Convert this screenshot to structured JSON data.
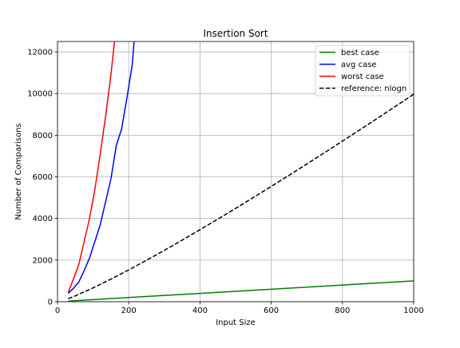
{
  "chart_data": {
    "type": "line",
    "title": "Insertion Sort",
    "xlabel": "Input Size",
    "ylabel": "Number of Comparisons",
    "xlim": [
      0,
      1000
    ],
    "ylim": [
      0,
      12500
    ],
    "xticks": [
      0,
      200,
      400,
      600,
      800,
      1000
    ],
    "yticks": [
      0,
      2000,
      4000,
      6000,
      8000,
      10000,
      12000
    ],
    "xtick_labels": [
      "0",
      "200",
      "400",
      "600",
      "800",
      "1000"
    ],
    "ytick_labels": [
      "0",
      "2000",
      "4000",
      "6000",
      "8000",
      "10000",
      "12000"
    ],
    "grid": true,
    "legend_position": "top-right",
    "series": [
      {
        "name": "best case",
        "color": "#008000",
        "dash": "solid",
        "x": [
          30,
          100,
          200,
          300,
          400,
          500,
          600,
          700,
          800,
          900,
          1000
        ],
        "y": [
          30,
          100,
          200,
          300,
          400,
          500,
          600,
          700,
          800,
          900,
          1000
        ]
      },
      {
        "name": "avg case",
        "color": "#0000ff",
        "dash": "solid",
        "x": [
          30,
          45,
          60,
          75,
          90,
          105,
          120,
          135,
          150,
          165,
          180,
          195,
          210,
          215
        ],
        "y": [
          400,
          650,
          950,
          1500,
          2100,
          2900,
          3700,
          4800,
          5900,
          7500,
          8300,
          9800,
          11400,
          12500
        ]
      },
      {
        "name": "worst case",
        "color": "#ff0000",
        "dash": "solid",
        "x": [
          30,
          45,
          60,
          75,
          90,
          105,
          120,
          135,
          150,
          160
        ],
        "y": [
          450,
          1100,
          1800,
          2900,
          4000,
          5400,
          7100,
          8900,
          10900,
          12500
        ]
      },
      {
        "name": "reference: nlogn",
        "color": "#000000",
        "dash": "dashed",
        "x": [
          30,
          50,
          100,
          150,
          200,
          250,
          300,
          350,
          400,
          450,
          500,
          550,
          600,
          650,
          700,
          750,
          800,
          850,
          900,
          950,
          1000
        ],
        "y": [
          147,
          282,
          664,
          1084,
          1529,
          1991,
          2468,
          2957,
          3458,
          3966,
          4483,
          5008,
          5537,
          6073,
          6615,
          7163,
          7715,
          8271,
          8831,
          9398,
          9966
        ]
      }
    ]
  }
}
